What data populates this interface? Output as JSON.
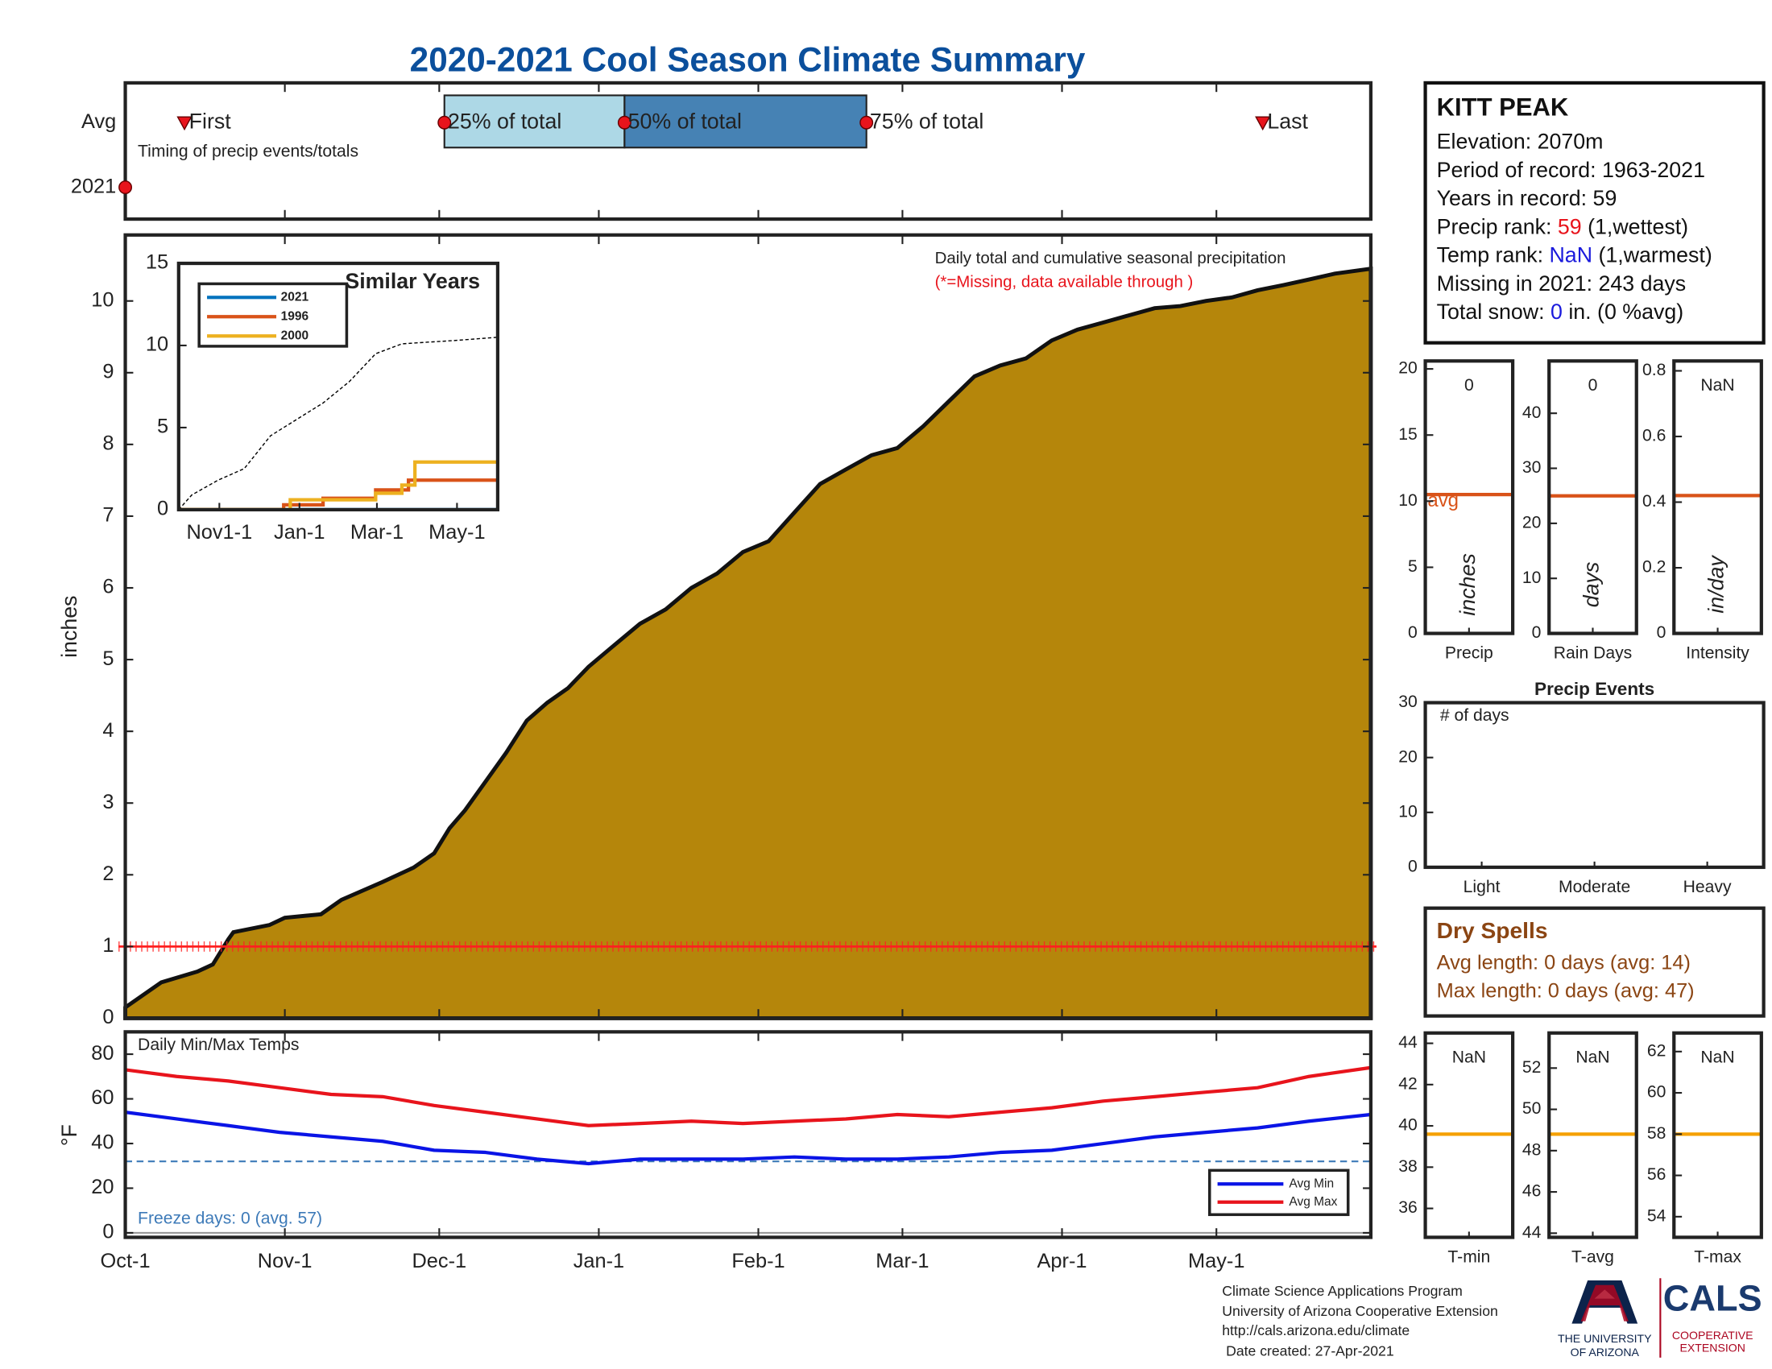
{
  "title": "2020-2021 Cool Season Climate Summary",
  "chart_data": [
    {
      "type": "timeline",
      "categories": [
        "Avg",
        "2021"
      ],
      "note": "Timing of precip events/totals",
      "avg_events": {
        "labels": [
          "First",
          "25% of total",
          "50% of total",
          "75% of total",
          "Last"
        ],
        "values": [
          11.5,
          62,
          97,
          144,
          221
        ]
      },
      "year_events": {
        "values": [
          0
        ]
      },
      "band_colors": [
        "#add8e6",
        "#4682b4"
      ],
      "marker_color": "#e8141c",
      "xlim": [
        0,
        242
      ]
    },
    {
      "type": "area",
      "ylabel": "inches",
      "annotations": [
        "Daily total and cumulative seasonal precipitation",
        "(*=Missing, data available through )"
      ],
      "x": [
        0,
        7,
        14,
        17,
        20,
        21,
        28,
        31,
        38,
        42,
        50,
        56,
        60,
        63,
        66,
        70,
        74,
        78,
        82,
        86,
        90,
        95,
        100,
        105,
        110,
        115,
        120,
        125,
        130,
        135,
        140,
        145,
        150,
        155,
        160,
        165,
        170,
        175,
        180,
        185,
        190,
        195,
        200,
        205,
        210,
        215,
        220,
        225,
        230,
        235,
        242
      ],
      "values": [
        0.15,
        0.5,
        0.65,
        0.75,
        1.1,
        1.2,
        1.3,
        1.4,
        1.45,
        1.65,
        1.9,
        2.1,
        2.3,
        2.65,
        2.9,
        3.3,
        3.7,
        4.15,
        4.4,
        4.6,
        4.9,
        5.2,
        5.5,
        5.7,
        6.0,
        6.2,
        6.5,
        6.65,
        7.05,
        7.45,
        7.65,
        7.85,
        7.95,
        8.25,
        8.6,
        8.95,
        9.1,
        9.2,
        9.45,
        9.6,
        9.7,
        9.8,
        9.9,
        9.93,
        10.0,
        10.05,
        10.15,
        10.22,
        10.3,
        10.38,
        10.45
      ],
      "color": "#b5860b",
      "missing_level": 1,
      "missing_color": "#ff2020",
      "xlim": [
        0,
        242
      ],
      "ylim": [
        0,
        10.92
      ],
      "yticks": [
        0,
        1,
        2,
        3,
        4,
        5,
        6,
        7,
        8,
        9,
        10
      ]
    },
    {
      "type": "line",
      "title": "Similar Years",
      "series": [
        {
          "name": "2021",
          "color": "#0072bd",
          "x": [
            0,
            243
          ],
          "values": [
            0,
            0
          ]
        },
        {
          "name": "1996",
          "color": "#d95319",
          "x": [
            0,
            80,
            80,
            110,
            110,
            150,
            150,
            175,
            175,
            243
          ],
          "values": [
            0,
            0,
            0.3,
            0.3,
            0.7,
            0.7,
            1.2,
            1.2,
            1.8,
            1.8
          ]
        },
        {
          "name": "2000",
          "color": "#edb120",
          "x": [
            0,
            85,
            85,
            150,
            150,
            170,
            170,
            180,
            180,
            243
          ],
          "values": [
            0,
            0,
            0.6,
            0.6,
            1.0,
            1.0,
            1.5,
            1.5,
            2.9,
            2.9
          ]
        }
      ],
      "reference": {
        "x": [
          0,
          10,
          30,
          50,
          70,
          90,
          110,
          130,
          150,
          170,
          190,
          210,
          243
        ],
        "values": [
          0,
          0.9,
          1.8,
          2.5,
          4.5,
          5.5,
          6.5,
          7.8,
          9.5,
          10.1,
          10.2,
          10.3,
          10.5
        ],
        "color": "#000000"
      },
      "xlim": [
        0,
        243
      ],
      "xticks": [
        {
          "value": 31,
          "label": "Nov1-1"
        },
        {
          "value": 92,
          "label": "Jan-1"
        },
        {
          "value": 151,
          "label": "Mar-1"
        },
        {
          "value": 212,
          "label": "May-1"
        }
      ],
      "ylim": [
        0,
        15
      ],
      "yticks": [
        0,
        5,
        10,
        15
      ]
    },
    {
      "type": "line",
      "title": "Daily Min/Max Temps",
      "ylabel": "°F",
      "note": "Freeze days: 0 (avg. 57)",
      "x": [
        0,
        10,
        20,
        30,
        40,
        50,
        60,
        70,
        80,
        90,
        100,
        110,
        120,
        130,
        140,
        150,
        160,
        170,
        180,
        190,
        200,
        210,
        220,
        230,
        242
      ],
      "series": [
        {
          "name": "Avg Min",
          "color": "#0a14e6",
          "values": [
            54,
            51,
            48,
            45,
            43,
            41,
            37,
            36,
            33,
            31,
            33,
            33,
            33,
            34,
            33,
            33,
            34,
            36,
            37,
            40,
            43,
            45,
            47,
            50,
            53
          ]
        },
        {
          "name": "Avg Max",
          "color": "#e8141c",
          "values": [
            73,
            70,
            68,
            65,
            62,
            61,
            57,
            54,
            51,
            48,
            49,
            50,
            49,
            50,
            51,
            53,
            52,
            54,
            56,
            59,
            61,
            63,
            65,
            70,
            74
          ]
        }
      ],
      "freeze_level": 32,
      "freeze_color": "#3d7ab8",
      "xlim": [
        0,
        242
      ],
      "xticks": [
        {
          "value": 0,
          "label": "Oct-1"
        },
        {
          "value": 31,
          "label": "Nov-1"
        },
        {
          "value": 61,
          "label": "Dec-1"
        },
        {
          "value": 92,
          "label": "Jan-1"
        },
        {
          "value": 123,
          "label": "Feb-1"
        },
        {
          "value": 151,
          "label": "Mar-1"
        },
        {
          "value": 182,
          "label": "Apr-1"
        },
        {
          "value": 212,
          "label": "May-1"
        }
      ],
      "ylim": [
        -2,
        90
      ],
      "yticks": [
        0,
        20,
        40,
        60,
        80
      ]
    },
    {
      "type": "bar",
      "categories": [
        "Precip"
      ],
      "values": [
        0
      ],
      "ylabel": "inches",
      "avg": 10.5,
      "avg_label": "avg",
      "avg_color": "#d95319",
      "ylim": [
        0,
        20.6
      ],
      "yticks": [
        0,
        5,
        10,
        15,
        20
      ]
    },
    {
      "type": "bar",
      "categories": [
        "Rain Days"
      ],
      "values": [
        0
      ],
      "ylabel": "days",
      "avg": 25,
      "avg_color": "#d95319",
      "ylim": [
        0,
        49.5
      ],
      "yticks": [
        0,
        10,
        20,
        30,
        40
      ]
    },
    {
      "type": "bar",
      "categories": [
        "Intensity"
      ],
      "values": [
        null
      ],
      "value_labels": [
        "NaN"
      ],
      "ylabel": "in/day",
      "avg": 0.42,
      "avg_color": "#d95319",
      "ylim": [
        0,
        0.83
      ],
      "yticks": [
        0,
        0.2,
        0.4,
        0.6,
        0.8
      ]
    },
    {
      "type": "bar",
      "title": "Precip Events",
      "ylabel": "# of days",
      "categories": [
        "Light",
        "Moderate",
        "Heavy"
      ],
      "values": [
        0,
        0,
        0
      ],
      "ylim": [
        0,
        30
      ],
      "yticks": [
        0,
        10,
        20,
        30
      ]
    },
    {
      "type": "bar",
      "categories": [
        "T-min"
      ],
      "values": [
        null
      ],
      "value_labels": [
        "NaN"
      ],
      "avg": 39.6,
      "avg_color": "#f5a000",
      "ylim": [
        34.6,
        44.5
      ],
      "yticks": [
        36,
        38,
        40,
        42,
        44
      ]
    },
    {
      "type": "bar",
      "categories": [
        "T-avg"
      ],
      "values": [
        null
      ],
      "value_labels": [
        "NaN"
      ],
      "avg": 48.8,
      "avg_color": "#f5a000",
      "ylim": [
        43.8,
        53.7
      ],
      "yticks": [
        44,
        46,
        48,
        50,
        52
      ]
    },
    {
      "type": "bar",
      "categories": [
        "T-max"
      ],
      "values": [
        null
      ],
      "value_labels": [
        "NaN"
      ],
      "avg": 58,
      "avg_color": "#f5a000",
      "ylim": [
        53,
        62.9
      ],
      "yticks": [
        54,
        56,
        58,
        60,
        62
      ]
    }
  ],
  "info": {
    "title": "KITT PEAK",
    "lines": [
      [
        "Elevation: 2070m"
      ],
      [
        "Period of record: 1963-2021"
      ],
      [
        "Years in record: 59"
      ],
      [
        "Precip rank: ",
        "59",
        " (1,wettest)"
      ],
      [
        "Temp rank: ",
        "NaN",
        " (1,warmest)"
      ],
      [
        "Missing in 2021: 243 days"
      ],
      [
        "Total snow: ",
        "0",
        " in. (0 %avg)"
      ]
    ],
    "accent_colors": [
      null,
      null,
      null,
      "#e8141c",
      "#1a1adc",
      null,
      "#1a1adc"
    ]
  },
  "dry_spells": {
    "title": "Dry Spells",
    "lines": [
      "Avg length: 0 days (avg: 14)",
      "Max length: 0 days (avg: 47)"
    ]
  },
  "footer": {
    "lines": [
      "Climate Science Applications Program",
      "University of Arizona Cooperative Extension",
      "http://cals.arizona.edu/climate",
      " Date created: 27-Apr-2021"
    ]
  },
  "logo": {
    "university": [
      "THE UNIVERSITY",
      "OF ARIZONA"
    ],
    "cals": "CALS",
    "extension": [
      "COOPERATIVE",
      "EXTENSION"
    ]
  }
}
